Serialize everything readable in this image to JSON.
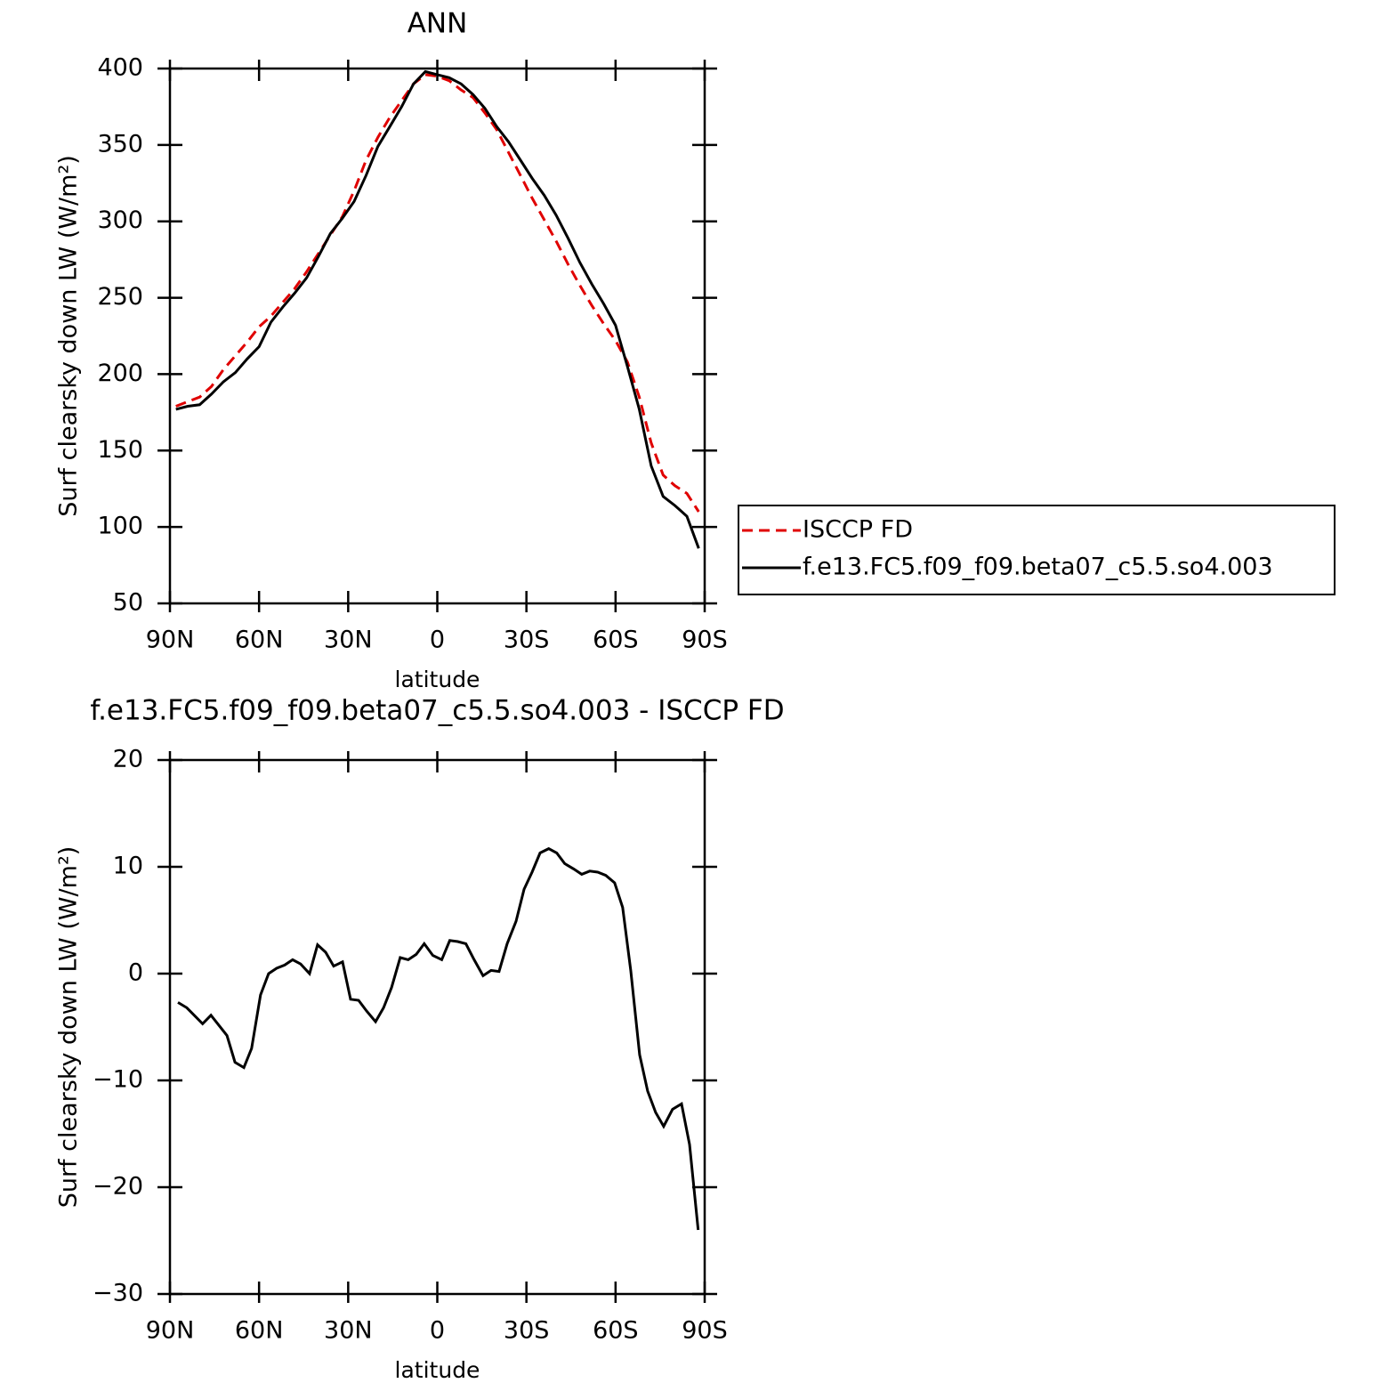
{
  "chart_data": [
    {
      "type": "line",
      "title": "ANN",
      "x_label": "latitude",
      "y_label": "Surf clearsky down LW (W/m²)",
      "x": [
        88,
        84,
        80,
        76,
        72,
        68,
        64,
        60,
        56,
        52,
        48,
        44,
        40,
        36,
        32,
        28,
        24,
        20,
        16,
        12,
        8,
        4,
        0,
        -4,
        -8,
        -12,
        -16,
        -20,
        -24,
        -28,
        -32,
        -36,
        -40,
        -44,
        -48,
        -52,
        -56,
        -60,
        -64,
        -68,
        -72,
        -76,
        -80,
        -84,
        -88
      ],
      "series": [
        {
          "name": "ISCCP FD",
          "color": "#e00000",
          "dash": true,
          "values": [
            179,
            182,
            185,
            192,
            203,
            212,
            221,
            231,
            238,
            247,
            256,
            267,
            279,
            291,
            303,
            320,
            340,
            355,
            368,
            379,
            390,
            396,
            395,
            392,
            386,
            381,
            371,
            360,
            345,
            330,
            315,
            301,
            287,
            272,
            258,
            245,
            233,
            222,
            208,
            185,
            155,
            134,
            127,
            122,
            110
          ]
        },
        {
          "name": "f.e13.FC5.f09_f09.beta07_c5.5.so4.003",
          "color": "#000000",
          "dash": false,
          "values": [
            177,
            179,
            180,
            187,
            195,
            201,
            210,
            218,
            234,
            244,
            253,
            263,
            277,
            292,
            302,
            313,
            330,
            349,
            362,
            375,
            390,
            398,
            396,
            394,
            390,
            383,
            374,
            362,
            352,
            340,
            328,
            317,
            304,
            289,
            273,
            259,
            246,
            232,
            205,
            177,
            140,
            120,
            114,
            107,
            86
          ]
        }
      ],
      "xlim": [
        90,
        -90
      ],
      "xticks": [
        {
          "value": 90,
          "label": "90N"
        },
        {
          "value": 60,
          "label": "60N"
        },
        {
          "value": 30,
          "label": "30N"
        },
        0,
        {
          "value": -30,
          "label": "30S"
        },
        {
          "value": -60,
          "label": "60S"
        },
        {
          "value": -90,
          "label": "90S"
        }
      ],
      "ylim": [
        50,
        400
      ],
      "yticks": [
        50,
        100,
        150,
        200,
        250,
        300,
        350,
        400
      ],
      "legend": "right"
    },
    {
      "type": "line",
      "title": "f.e13.FC5.f09_f09.beta07_c5.5.so4.003 - ISCCP FD",
      "x_label": "latitude",
      "y_label": "Surf clearsky down LW (W/m²)",
      "x": [
        87.3,
        84.3,
        79,
        76.2,
        70.8,
        68.1,
        65.1,
        62.5,
        59.5,
        56.8,
        54.1,
        51.4,
        48.7,
        46,
        43,
        40.3,
        37.6,
        34.9,
        31.9,
        29.2,
        26.5,
        23.8,
        20.8,
        18.1,
        15.4,
        12.5,
        9.8,
        7.1,
        4.4,
        1.5,
        -1.5,
        -4.2,
        -6.9,
        -9.6,
        -12.4,
        -15.4,
        -18.1,
        -20.8,
        -23.5,
        -26.5,
        -29.2,
        -31.9,
        -34.6,
        -37.5,
        -40.2,
        -42.9,
        -45.9,
        -48.6,
        -51.3,
        -54,
        -56.7,
        -59.7,
        -62.4,
        -65.1,
        -68.1,
        -70.8,
        -73.5,
        -76.2,
        -79.2,
        -82.2,
        -84.9,
        -87.8
      ],
      "series": [
        {
          "color": "#000000",
          "dash": false,
          "values": [
            -2.7,
            -3.2,
            -4.7,
            -3.9,
            -5.8,
            -8.3,
            -8.8,
            -7,
            -2,
            0,
            0.5,
            0.8,
            1.3,
            0.9,
            0,
            2.7,
            2,
            0.7,
            1.1,
            -2.4,
            -2.5,
            -3.5,
            -4.5,
            -3.2,
            -1.3,
            1.5,
            1.3,
            1.8,
            2.8,
            1.7,
            1.3,
            3.1,
            3,
            2.8,
            1.3,
            -0.2,
            0.3,
            0.2,
            2.8,
            4.9,
            7.9,
            9.5,
            11.3,
            11.7,
            11.3,
            10.3,
            9.8,
            9.3,
            9.6,
            9.5,
            9.2,
            8.5,
            6.2,
            0.3,
            -7.6,
            -11,
            -13,
            -14.3,
            -12.7,
            -12.2,
            -16,
            -24
          ]
        }
      ],
      "xlim": [
        90,
        -90
      ],
      "xticks": [
        {
          "value": 90,
          "label": "90N"
        },
        {
          "value": 60,
          "label": "60N"
        },
        {
          "value": 30,
          "label": "30N"
        },
        0,
        {
          "value": -30,
          "label": "30S"
        },
        {
          "value": -60,
          "label": "60S"
        },
        {
          "value": -90,
          "label": "90S"
        }
      ],
      "ylim": [
        -30,
        20
      ],
      "yticks": [
        {
          "value": -30,
          "label": "−30"
        },
        {
          "value": -20,
          "label": "−20"
        },
        {
          "value": -10,
          "label": "−10"
        },
        0,
        10,
        20
      ]
    }
  ]
}
